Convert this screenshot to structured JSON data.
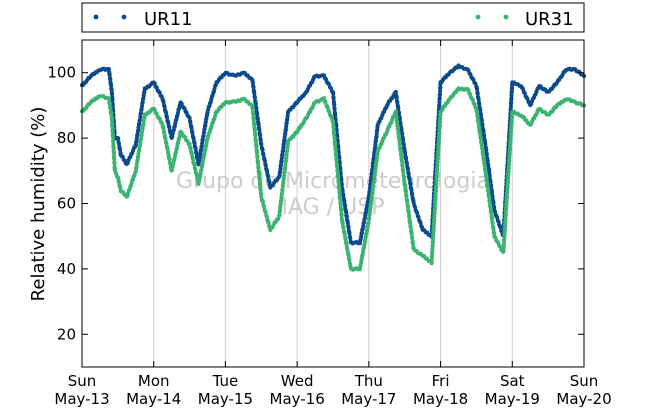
{
  "chart_data": {
    "type": "scatter",
    "title": "",
    "xlabel": "",
    "ylabel": "Relative humidity (%)",
    "watermark": [
      "Grupo de Micrometeorologia",
      "IAG / USP"
    ],
    "xlim": [
      "2012-05-13T00:00",
      "2012-05-20T00:00"
    ],
    "ylim": [
      10,
      110
    ],
    "yticks": [
      20,
      40,
      60,
      80,
      100
    ],
    "xticks": [
      {
        "x": "2012-05-13T00:00",
        "day": "Sun",
        "date": "May-13"
      },
      {
        "x": "2012-05-14T00:00",
        "day": "Mon",
        "date": "May-14"
      },
      {
        "x": "2012-05-15T00:00",
        "day": "Tue",
        "date": "May-15"
      },
      {
        "x": "2012-05-16T00:00",
        "day": "Wed",
        "date": "May-16"
      },
      {
        "x": "2012-05-17T00:00",
        "day": "Thu",
        "date": "May-17"
      },
      {
        "x": "2012-05-18T00:00",
        "day": "Fri",
        "date": "May-18"
      },
      {
        "x": "2012-05-19T00:00",
        "day": "Sat",
        "date": "May-19"
      },
      {
        "x": "2012-05-20T00:00",
        "day": "Sun",
        "date": "May-20"
      }
    ],
    "grid": "vertical",
    "legend_placement": "top",
    "series": [
      {
        "name": "UR11",
        "color": "#0b4a8b",
        "x": [
          "2012-05-13T00:00",
          "2012-05-13T03:00",
          "2012-05-13T06:00",
          "2012-05-13T09:00",
          "2012-05-13T10:00",
          "2012-05-13T11:00",
          "2012-05-13T12:00",
          "2012-05-13T13:00",
          "2012-05-13T15:00",
          "2012-05-13T18:00",
          "2012-05-13T21:00",
          "2012-05-14T00:00",
          "2012-05-14T03:00",
          "2012-05-14T06:00",
          "2012-05-14T09:00",
          "2012-05-14T12:00",
          "2012-05-14T15:00",
          "2012-05-14T18:00",
          "2012-05-14T21:00",
          "2012-05-15T00:00",
          "2012-05-15T03:00",
          "2012-05-15T06:00",
          "2012-05-15T09:00",
          "2012-05-15T12:00",
          "2012-05-15T15:00",
          "2012-05-15T18:00",
          "2012-05-15T21:00",
          "2012-05-16T00:00",
          "2012-05-16T03:00",
          "2012-05-16T06:00",
          "2012-05-16T09:00",
          "2012-05-16T12:00",
          "2012-05-16T15:00",
          "2012-05-16T18:00",
          "2012-05-16T21:00",
          "2012-05-17T00:00",
          "2012-05-17T03:00",
          "2012-05-17T06:00",
          "2012-05-17T09:00",
          "2012-05-17T12:00",
          "2012-05-17T15:00",
          "2012-05-17T18:00",
          "2012-05-17T21:00",
          "2012-05-18T00:00",
          "2012-05-18T03:00",
          "2012-05-18T06:00",
          "2012-05-18T09:00",
          "2012-05-18T12:00",
          "2012-05-18T15:00",
          "2012-05-18T18:00",
          "2012-05-18T21:00",
          "2012-05-19T00:00",
          "2012-05-19T03:00",
          "2012-05-19T06:00",
          "2012-05-19T09:00",
          "2012-05-19T12:00",
          "2012-05-19T15:00",
          "2012-05-19T18:00",
          "2012-05-19T21:00",
          "2012-05-20T00:00"
        ],
        "y": [
          96,
          99,
          101,
          101,
          94,
          80,
          80,
          75,
          72,
          78,
          95,
          97,
          92,
          80,
          91,
          86,
          72,
          88,
          97,
          100,
          99,
          100,
          98,
          78,
          65,
          68,
          88,
          91,
          94,
          99,
          99,
          94,
          65,
          48,
          48,
          62,
          84,
          90,
          94,
          76,
          60,
          52,
          50,
          97,
          100,
          102,
          101,
          96,
          78,
          58,
          50,
          97,
          96,
          90,
          96,
          94,
          97,
          101,
          101,
          99
        ]
      },
      {
        "name": "UR31",
        "color": "#3cb371",
        "x": [
          "2012-05-13T00:00",
          "2012-05-13T03:00",
          "2012-05-13T06:00",
          "2012-05-13T09:00",
          "2012-05-13T10:00",
          "2012-05-13T11:00",
          "2012-05-13T12:00",
          "2012-05-13T13:00",
          "2012-05-13T15:00",
          "2012-05-13T18:00",
          "2012-05-13T21:00",
          "2012-05-14T00:00",
          "2012-05-14T03:00",
          "2012-05-14T06:00",
          "2012-05-14T09:00",
          "2012-05-14T12:00",
          "2012-05-14T15:00",
          "2012-05-14T18:00",
          "2012-05-14T21:00",
          "2012-05-15T00:00",
          "2012-05-15T03:00",
          "2012-05-15T06:00",
          "2012-05-15T09:00",
          "2012-05-15T12:00",
          "2012-05-15T15:00",
          "2012-05-15T18:00",
          "2012-05-15T21:00",
          "2012-05-16T00:00",
          "2012-05-16T03:00",
          "2012-05-16T06:00",
          "2012-05-16T09:00",
          "2012-05-16T12:00",
          "2012-05-16T15:00",
          "2012-05-16T18:00",
          "2012-05-16T21:00",
          "2012-05-17T00:00",
          "2012-05-17T03:00",
          "2012-05-17T06:00",
          "2012-05-17T09:00",
          "2012-05-17T12:00",
          "2012-05-17T15:00",
          "2012-05-17T18:00",
          "2012-05-17T21:00",
          "2012-05-18T00:00",
          "2012-05-18T03:00",
          "2012-05-18T06:00",
          "2012-05-18T09:00",
          "2012-05-18T12:00",
          "2012-05-18T15:00",
          "2012-05-18T18:00",
          "2012-05-18T21:00",
          "2012-05-19T00:00",
          "2012-05-19T03:00",
          "2012-05-19T06:00",
          "2012-05-19T09:00",
          "2012-05-19T12:00",
          "2012-05-19T15:00",
          "2012-05-19T18:00",
          "2012-05-19T21:00",
          "2012-05-20T00:00"
        ],
        "y": [
          88,
          91,
          93,
          92,
          86,
          70,
          68,
          64,
          62,
          70,
          87,
          89,
          84,
          70,
          82,
          78,
          66,
          80,
          88,
          91,
          91,
          92,
          90,
          62,
          52,
          56,
          79,
          82,
          86,
          91,
          92,
          85,
          55,
          40,
          40,
          55,
          76,
          82,
          88,
          66,
          46,
          44,
          42,
          88,
          92,
          95,
          95,
          89,
          70,
          50,
          45,
          88,
          87,
          84,
          89,
          87,
          90,
          92,
          91,
          90
        ]
      }
    ]
  }
}
